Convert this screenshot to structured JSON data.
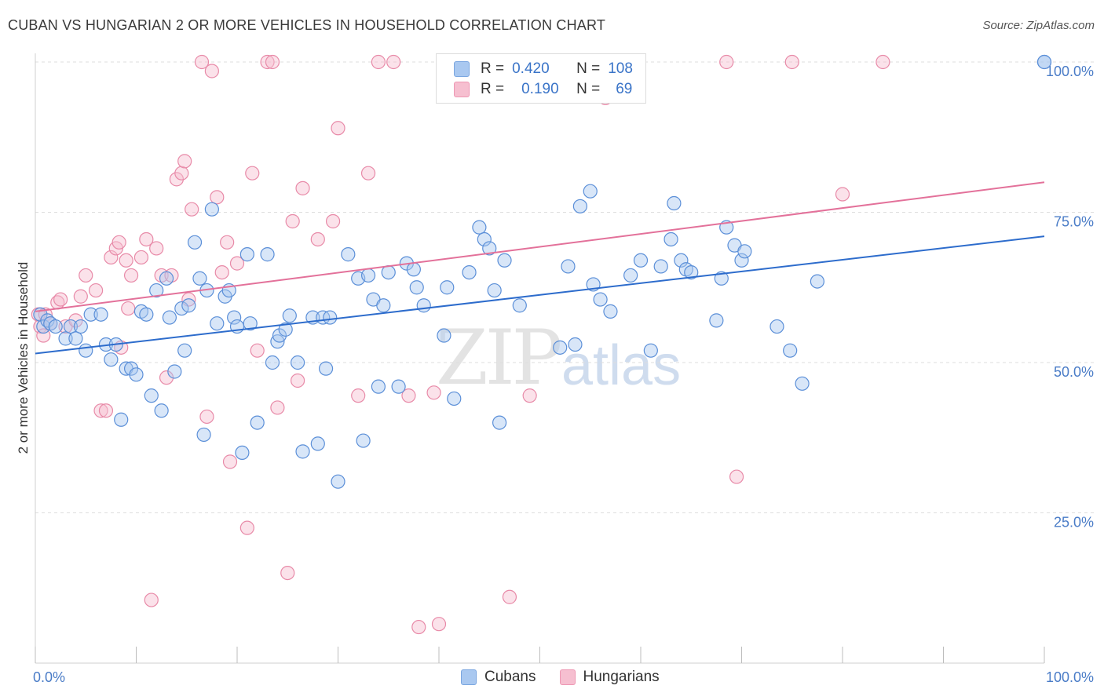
{
  "header": {
    "title": "CUBAN VS HUNGARIAN 2 OR MORE VEHICLES IN HOUSEHOLD CORRELATION CHART",
    "source": "Source: ZipAtlas.com"
  },
  "watermark": {
    "zip": "ZIP",
    "atlas": "atlas"
  },
  "legend": {
    "rows": [
      {
        "r_label": "R =",
        "r_value": "0.420",
        "n_label": "N =",
        "n_value": "108",
        "color": "#a9c8f0",
        "border": "#7aa6e0"
      },
      {
        "r_label": "R =",
        "r_value": "0.190",
        "n_label": "N =",
        "n_value": "69",
        "color": "#f6bfd0",
        "border": "#ee97b3"
      }
    ]
  },
  "bottom_legend": {
    "cubans": "Cubans",
    "hungarians": "Hungarians"
  },
  "colors": {
    "cubans_fill": "#a9c8f0",
    "cubans_stroke": "#5b8fd8",
    "cubans_line": "#2d6ccc",
    "hungarians_fill": "#f6bfd0",
    "hungarians_stroke": "#e88aa8",
    "hungarians_line": "#e3719a",
    "tick_text": "#4a7cc7",
    "grid": "#dddddd"
  },
  "chart_data": {
    "type": "scatter",
    "title": "CUBAN VS HUNGARIAN 2 OR MORE VEHICLES IN HOUSEHOLD CORRELATION CHART",
    "xlabel": "",
    "ylabel": "2 or more Vehicles in Household",
    "xlim": [
      0,
      100
    ],
    "ylim": [
      0,
      100
    ],
    "x_tick_labels": [
      "0.0%",
      "100.0%"
    ],
    "y_tick_labels": [
      "25.0%",
      "50.0%",
      "75.0%",
      "100.0%"
    ],
    "y_ticks": [
      25,
      50,
      75,
      100
    ],
    "grid": true,
    "legend_placement": "top-center",
    "series": [
      {
        "name": "Cubans",
        "trend": {
          "x": [
            0,
            100
          ],
          "y": [
            51.5,
            71
          ]
        },
        "points": [
          [
            0.5,
            58
          ],
          [
            0.8,
            56
          ],
          [
            1.2,
            57
          ],
          [
            1.5,
            56.5
          ],
          [
            2,
            56
          ],
          [
            3,
            54
          ],
          [
            3.5,
            56
          ],
          [
            4,
            54
          ],
          [
            4.5,
            56
          ],
          [
            5,
            52
          ],
          [
            5.5,
            58
          ],
          [
            6.5,
            58
          ],
          [
            7,
            53
          ],
          [
            7.5,
            50.5
          ],
          [
            8,
            53
          ],
          [
            8.5,
            40.5
          ],
          [
            9,
            49
          ],
          [
            9.5,
            49
          ],
          [
            10,
            48
          ],
          [
            10.5,
            58.5
          ],
          [
            11,
            58
          ],
          [
            11.5,
            44.5
          ],
          [
            12,
            62
          ],
          [
            12.5,
            42
          ],
          [
            13,
            64
          ],
          [
            13.3,
            57.5
          ],
          [
            13.8,
            48.5
          ],
          [
            14.5,
            59
          ],
          [
            14.8,
            52
          ],
          [
            15.2,
            59.5
          ],
          [
            15.8,
            70
          ],
          [
            16.3,
            64
          ],
          [
            16.7,
            38
          ],
          [
            17,
            62
          ],
          [
            17.5,
            75.5
          ],
          [
            18,
            56.5
          ],
          [
            18.8,
            61
          ],
          [
            19.2,
            62
          ],
          [
            19.7,
            57.5
          ],
          [
            20,
            56
          ],
          [
            20.5,
            35
          ],
          [
            21,
            68
          ],
          [
            21.3,
            56.5
          ],
          [
            22,
            40
          ],
          [
            23,
            68
          ],
          [
            23.5,
            50
          ],
          [
            24,
            53.5
          ],
          [
            24.2,
            54.5
          ],
          [
            24.8,
            55.5
          ],
          [
            25.2,
            57.8
          ],
          [
            26,
            50
          ],
          [
            26.5,
            35.2
          ],
          [
            27.5,
            57.5
          ],
          [
            28,
            36.5
          ],
          [
            28.5,
            57.5
          ],
          [
            28.8,
            49
          ],
          [
            29.2,
            57.5
          ],
          [
            30,
            30.2
          ],
          [
            31,
            68
          ],
          [
            32,
            64
          ],
          [
            32.5,
            37
          ],
          [
            33,
            64.5
          ],
          [
            33.5,
            60.5
          ],
          [
            34,
            46
          ],
          [
            34.5,
            59.5
          ],
          [
            35,
            65
          ],
          [
            36,
            46
          ],
          [
            36.8,
            66.5
          ],
          [
            37.5,
            65.5
          ],
          [
            37.8,
            62.5
          ],
          [
            38.5,
            59.5
          ],
          [
            40.5,
            54.5
          ],
          [
            40.8,
            62.5
          ],
          [
            41.5,
            44
          ],
          [
            43,
            65
          ],
          [
            44,
            72.5
          ],
          [
            44.5,
            70.5
          ],
          [
            45,
            69
          ],
          [
            45.5,
            62
          ],
          [
            46,
            40
          ],
          [
            46.5,
            67
          ],
          [
            48,
            59.5
          ],
          [
            52,
            52.5
          ],
          [
            52.8,
            66
          ],
          [
            53.5,
            53
          ],
          [
            54,
            76
          ],
          [
            55,
            78.5
          ],
          [
            55.3,
            63
          ],
          [
            56,
            60.5
          ],
          [
            57,
            58.5
          ],
          [
            59,
            64.5
          ],
          [
            60,
            67
          ],
          [
            61,
            52
          ],
          [
            62,
            66
          ],
          [
            63,
            70.5
          ],
          [
            63.3,
            76.5
          ],
          [
            64,
            67
          ],
          [
            64.5,
            65.5
          ],
          [
            65,
            65
          ],
          [
            67.5,
            57
          ],
          [
            68,
            64
          ],
          [
            68.5,
            72.5
          ],
          [
            69.3,
            69.5
          ],
          [
            70,
            67
          ],
          [
            70.3,
            68.5
          ],
          [
            73.5,
            56
          ],
          [
            74.8,
            52
          ],
          [
            76,
            46.5
          ],
          [
            77.5,
            63.5
          ],
          [
            100,
            100
          ],
          [
            100,
            100
          ]
        ]
      },
      {
        "name": "Hungarians",
        "trend": {
          "x": [
            0,
            100
          ],
          "y": [
            58.5,
            80
          ]
        },
        "points": [
          [
            0.3,
            58
          ],
          [
            0.5,
            56
          ],
          [
            0.8,
            54.5
          ],
          [
            1,
            58
          ],
          [
            1.5,
            56.5
          ],
          [
            2.2,
            60
          ],
          [
            2.5,
            60.5
          ],
          [
            3,
            56
          ],
          [
            4,
            57
          ],
          [
            4.5,
            61
          ],
          [
            5,
            64.5
          ],
          [
            6,
            62
          ],
          [
            6.5,
            42
          ],
          [
            7,
            42
          ],
          [
            7.5,
            67.5
          ],
          [
            8,
            69
          ],
          [
            8.3,
            70
          ],
          [
            8.5,
            52.5
          ],
          [
            9,
            67
          ],
          [
            9.2,
            59
          ],
          [
            9.5,
            64.5
          ],
          [
            10.5,
            67.5
          ],
          [
            11,
            70.5
          ],
          [
            11.5,
            10.5
          ],
          [
            12,
            69
          ],
          [
            12.5,
            64.5
          ],
          [
            13,
            47.5
          ],
          [
            13.5,
            64.5
          ],
          [
            14,
            80.5
          ],
          [
            14.5,
            81.5
          ],
          [
            14.8,
            83.5
          ],
          [
            15.2,
            60.5
          ],
          [
            15.5,
            75.5
          ],
          [
            16.5,
            100
          ],
          [
            17,
            41
          ],
          [
            17.5,
            98.5
          ],
          [
            18,
            77.5
          ],
          [
            18.5,
            65
          ],
          [
            19,
            70
          ],
          [
            19.3,
            33.5
          ],
          [
            20,
            66.5
          ],
          [
            21,
            22.5
          ],
          [
            21.5,
            81.5
          ],
          [
            22,
            52
          ],
          [
            23,
            100
          ],
          [
            23.5,
            100
          ],
          [
            24,
            42.5
          ],
          [
            25,
            15
          ],
          [
            25.5,
            73.5
          ],
          [
            26,
            47
          ],
          [
            26.5,
            79
          ],
          [
            28,
            70.5
          ],
          [
            29.5,
            73.5
          ],
          [
            30,
            89
          ],
          [
            32,
            44.5
          ],
          [
            33,
            81.5
          ],
          [
            34,
            100
          ],
          [
            35.5,
            100
          ],
          [
            37,
            44.5
          ],
          [
            38,
            6
          ],
          [
            39.5,
            45
          ],
          [
            40,
            6.5
          ],
          [
            47,
            11
          ],
          [
            49,
            44.5
          ],
          [
            56.5,
            94
          ],
          [
            68.5,
            100
          ],
          [
            69.5,
            31
          ],
          [
            75,
            100
          ],
          [
            80,
            78
          ],
          [
            84,
            100
          ]
        ]
      }
    ]
  }
}
